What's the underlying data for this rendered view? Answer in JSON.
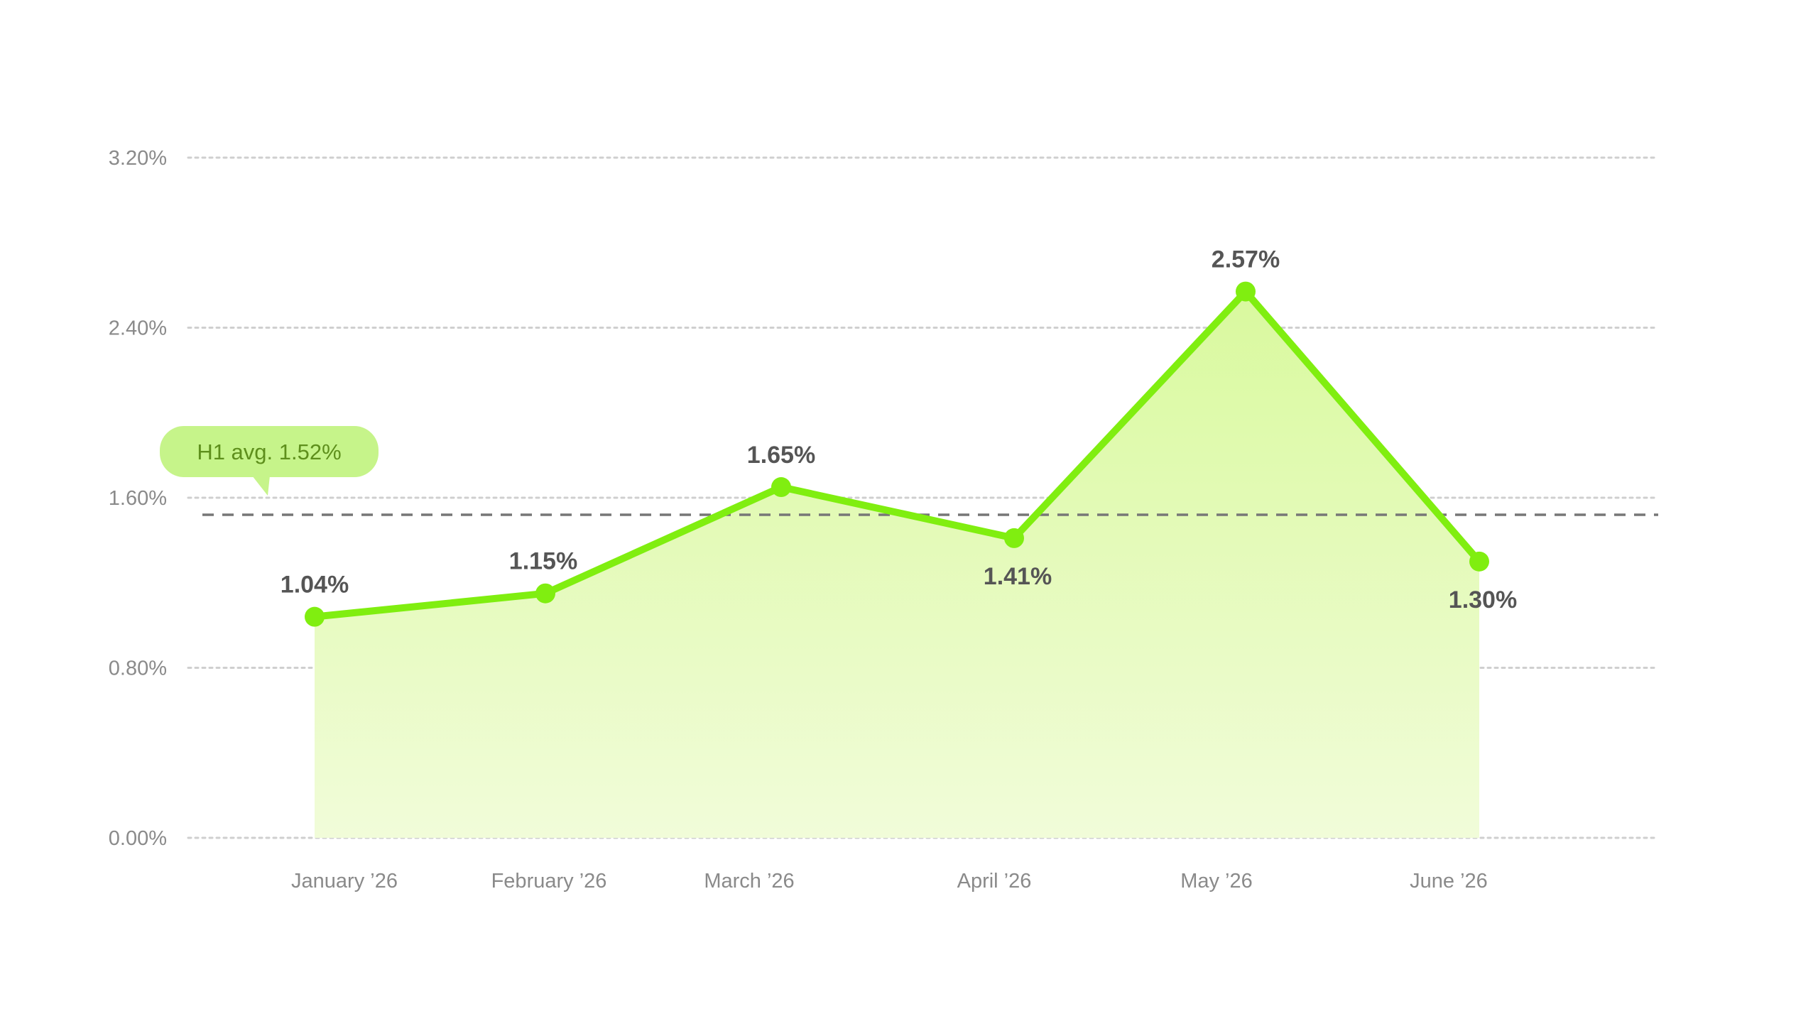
{
  "chart_data": {
    "type": "area",
    "categories": [
      "January ’26",
      "February ’26",
      "March ’26",
      "April ’26",
      "May ’26",
      "June ’26"
    ],
    "series": [
      {
        "values": [
          1.04,
          1.15,
          1.65,
          1.41,
          2.57,
          1.3
        ],
        "value_labels": [
          "1.04%",
          "1.15%",
          "1.65%",
          "1.41%",
          "2.57%",
          "1.30%"
        ],
        "color": "#80ee10",
        "fill_color": "#e4fbbf"
      }
    ],
    "ylim": [
      0,
      3.2
    ],
    "yticks": [
      0,
      0.8,
      1.6,
      2.4,
      3.2
    ],
    "ytick_labels": [
      "0.00%",
      "0.80%",
      "1.60%",
      "2.40%",
      "3.20%"
    ],
    "grid": true,
    "reference_line": {
      "value": 1.52,
      "label": "H1 avg. 1.52%",
      "color": "#777777",
      "badge_color": "#c6f48a"
    }
  }
}
